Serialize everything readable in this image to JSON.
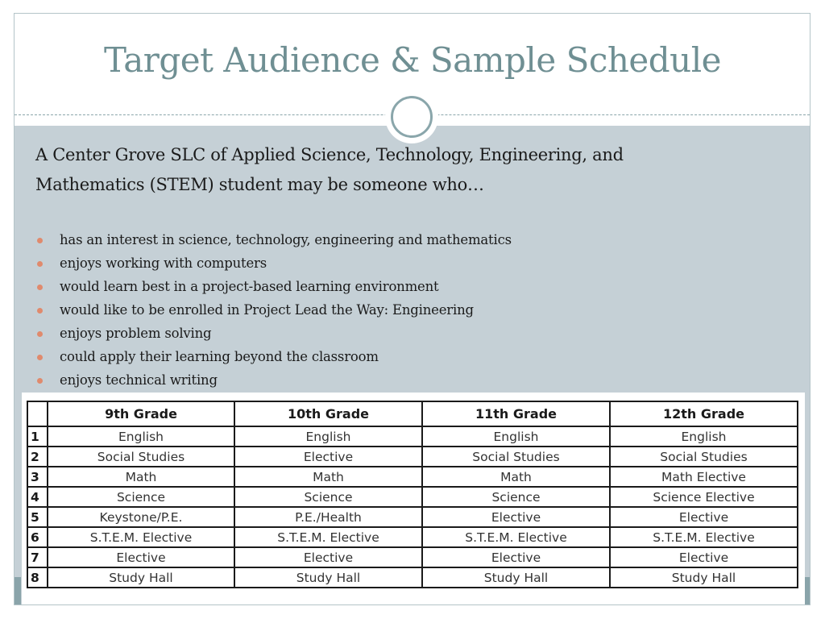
{
  "slide": {
    "title": "Target Audience & Sample Schedule",
    "intro_line1": "A Center Grove SLC of Applied Science, Technology, Engineering, and",
    "intro_line2": "Mathematics (STEM)  student may be someone who…",
    "bullets": [
      "has an interest in science, technology, engineering and mathematics",
      "enjoys working with computers",
      "would learn best in a project-based learning environment",
      "would like to be enrolled in Project Lead the Way: Engineering",
      "enjoys problem solving",
      "could apply their learning beyond the classroom",
      "enjoys technical writing"
    ]
  },
  "table": {
    "headers": [
      "9th Grade",
      "10th Grade",
      "11th Grade",
      "12th Grade"
    ],
    "rows": [
      {
        "num": "1",
        "cells": [
          "English",
          "English",
          "English",
          "English"
        ]
      },
      {
        "num": "2",
        "cells": [
          "Social Studies",
          "Elective",
          "Social Studies",
          "Social Studies"
        ]
      },
      {
        "num": "3",
        "cells": [
          "Math",
          "Math",
          "Math",
          "Math Elective"
        ]
      },
      {
        "num": "4",
        "cells": [
          "Science",
          "Science",
          "Science",
          "Science Elective"
        ]
      },
      {
        "num": "5",
        "cells": [
          "Keystone/P.E.",
          "P.E./Health",
          "Elective",
          "Elective"
        ]
      },
      {
        "num": "6",
        "cells": [
          "S.T.E.M. Elective",
          "S.T.E.M. Elective",
          "S.T.E.M. Elective",
          "S.T.E.M. Elective"
        ]
      },
      {
        "num": "7",
        "cells": [
          "Elective",
          "Elective",
          "Elective",
          "Elective"
        ]
      },
      {
        "num": "8",
        "cells": [
          "Study Hall",
          "Study Hall",
          "Study Hall",
          "Study Hall"
        ]
      }
    ]
  },
  "colors": {
    "title": "#6f8f93",
    "panel": "#c5d0d6",
    "bullet": "#e08a6d",
    "accent": "#8aa6ab"
  }
}
